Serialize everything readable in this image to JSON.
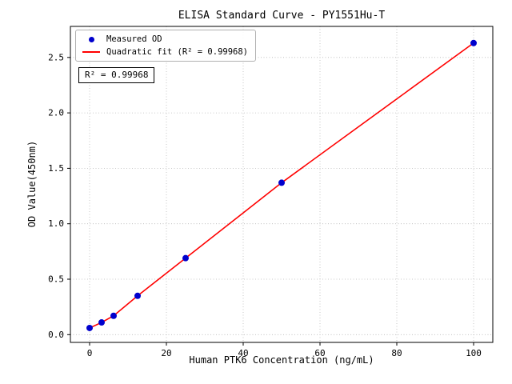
{
  "chart_data": {
    "type": "scatter",
    "title": "ELISA Standard Curve - PY1551Hu-T",
    "xlabel": "Human PTK6 Concentration (ng/mL)",
    "ylabel": "OD Value(450nm)",
    "x": [
      0,
      3.125,
      6.25,
      12.5,
      25,
      50,
      100
    ],
    "y": [
      0.06,
      0.11,
      0.17,
      0.35,
      0.69,
      1.37,
      2.63
    ],
    "marker_color": "#0000cd",
    "line_color": "#ff0000",
    "xlim": [
      -5,
      105
    ],
    "ylim": [
      -0.07,
      2.78
    ],
    "xticks": {
      "values": [
        0,
        20,
        40,
        60,
        80,
        100
      ],
      "labels": [
        "0",
        "20",
        "40",
        "60",
        "80",
        "100"
      ]
    },
    "yticks": {
      "values": [
        0,
        0.5,
        1,
        1.5,
        2,
        2.5
      ],
      "labels": [
        "0.0",
        "0.5",
        "1.0",
        "1.5",
        "2.0",
        "2.5"
      ]
    },
    "grid": "dotted",
    "legend": {
      "position": "upper-left",
      "entries": [
        {
          "label": "Measured OD",
          "marker": "dot",
          "color": "#0000cd"
        },
        {
          "label": "Quadratic fit (R² = 0.99968)",
          "marker": "line",
          "color": "#ff0000"
        }
      ]
    },
    "annotation": {
      "text": "R² = 0.99968"
    }
  }
}
